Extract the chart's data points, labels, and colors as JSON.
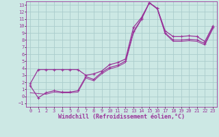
{
  "background_color": "#cce8e4",
  "grid_color": "#aacccc",
  "line_color": "#993399",
  "xlim": [
    -0.5,
    23.5
  ],
  "ylim": [
    -1.5,
    13.5
  ],
  "xticks": [
    0,
    1,
    2,
    3,
    4,
    5,
    6,
    7,
    8,
    9,
    10,
    11,
    12,
    13,
    14,
    15,
    16,
    17,
    18,
    19,
    20,
    21,
    22,
    23
  ],
  "yticks": [
    -1,
    0,
    1,
    2,
    3,
    4,
    5,
    6,
    7,
    8,
    9,
    10,
    11,
    12,
    13
  ],
  "curve1_x": [
    0,
    1,
    2,
    3,
    4,
    5,
    6,
    7,
    8,
    9,
    10,
    11,
    12,
    13,
    14,
    15,
    16,
    17,
    18,
    19,
    20,
    21,
    22,
    23
  ],
  "curve1_y": [
    1.8,
    3.8,
    3.8,
    3.8,
    3.8,
    3.8,
    3.8,
    3.0,
    3.2,
    3.6,
    4.5,
    4.8,
    5.3,
    9.8,
    11.2,
    13.3,
    12.5,
    9.3,
    8.5,
    8.5,
    8.6,
    8.5,
    7.8,
    10.0
  ],
  "curve2_x": [
    0,
    1,
    2,
    3,
    4,
    5,
    6,
    7,
    8,
    9,
    10,
    11,
    12,
    13,
    14,
    15,
    16,
    17,
    18,
    19,
    20,
    21,
    22,
    23
  ],
  "curve2_y": [
    1.5,
    -0.2,
    0.5,
    0.8,
    0.6,
    0.6,
    0.8,
    2.8,
    2.4,
    3.4,
    4.1,
    4.4,
    5.0,
    9.2,
    11.0,
    13.3,
    12.5,
    9.0,
    8.0,
    8.0,
    8.1,
    8.0,
    7.5,
    9.8
  ],
  "curve3_x": [
    0,
    2,
    3,
    4,
    5,
    6,
    7,
    8,
    9,
    10,
    11,
    12,
    13,
    14,
    15,
    16,
    17,
    18,
    19,
    20,
    21,
    22,
    23
  ],
  "curve3_y": [
    0.5,
    0.3,
    0.6,
    0.5,
    0.5,
    0.6,
    2.6,
    2.2,
    3.2,
    3.9,
    4.2,
    4.8,
    9.0,
    10.9,
    13.3,
    12.4,
    8.9,
    7.8,
    7.8,
    7.9,
    7.8,
    7.3,
    9.6
  ],
  "xlabel": "Windchill (Refroidissement éolien,°C)",
  "font_color": "#993399",
  "tick_fontsize": 5,
  "label_fontsize": 6
}
